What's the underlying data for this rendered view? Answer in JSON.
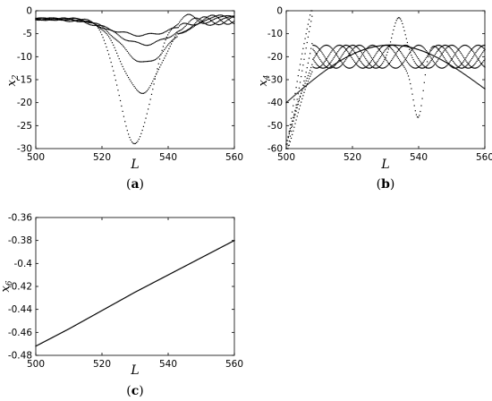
{
  "chart_data": [
    {
      "panel": "(a)",
      "panel_letter": "a",
      "type": "scatter",
      "xlabel": "L",
      "ylabel_base": "x",
      "ylabel_sub": "2",
      "xlim": [
        500,
        560
      ],
      "ylim": [
        -30,
        0
      ],
      "xticks": [
        500,
        520,
        540,
        560
      ],
      "yticks": [
        0,
        -5,
        -10,
        -15,
        -20,
        -25,
        -30
      ],
      "series": [
        {
          "min": -27.0,
          "center": 530,
          "width": 7.0
        },
        {
          "min": -16.0,
          "center": 532,
          "width": 8.5
        },
        {
          "min": -9.5,
          "center": 533,
          "width": 10.0
        },
        {
          "min": -5.5,
          "center": 533,
          "width": 12.0
        },
        {
          "min": -3.5,
          "center": 532,
          "width": 14.0
        }
      ]
    },
    {
      "panel": "(b)",
      "panel_letter": "b",
      "type": "scatter",
      "xlabel": "L",
      "ylabel_base": "x",
      "ylabel_sub": "4",
      "xlim": [
        500,
        560
      ],
      "ylim": [
        -60,
        0
      ],
      "xticks": [
        500,
        520,
        540,
        560
      ],
      "yticks": [
        0,
        -10,
        -20,
        -30,
        -40,
        -50,
        -60
      ],
      "features": {
        "peak_x": 534,
        "peak_y": -5,
        "dip_x": 540,
        "dip_y": -53,
        "start_y": -60,
        "end_y": -24
      }
    },
    {
      "panel": "(c)",
      "panel_letter": "c",
      "type": "scatter",
      "xlabel": "L",
      "ylabel_base": "x",
      "ylabel_sub": "6",
      "xlim": [
        500,
        560
      ],
      "ylim": [
        -0.48,
        -0.36
      ],
      "xticks": [
        500,
        520,
        540,
        560
      ],
      "yticks": [
        -0.36,
        -0.38,
        -0.4,
        -0.42,
        -0.44,
        -0.46,
        -0.48
      ],
      "ytick_labels": [
        "-0.36",
        "-0.38",
        "-0.4",
        "-0.42",
        "-0.44",
        "-0.46",
        "-0.48"
      ],
      "x": [
        500,
        510,
        520,
        530,
        540,
        550,
        560
      ],
      "y": [
        -0.472,
        -0.457,
        -0.441,
        -0.425,
        -0.41,
        -0.395,
        -0.38
      ]
    }
  ]
}
